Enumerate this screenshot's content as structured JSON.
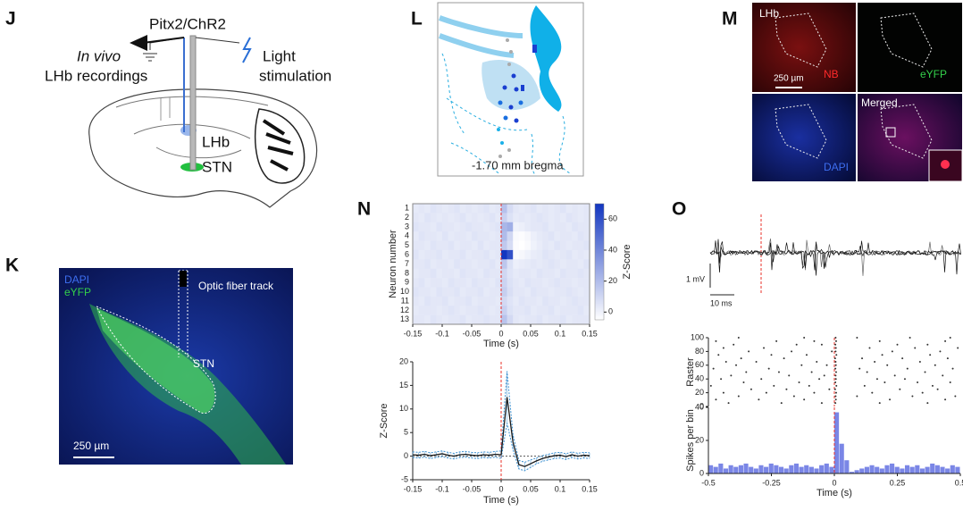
{
  "panel_labels": [
    "J",
    "K",
    "L",
    "M",
    "N",
    "O"
  ],
  "J": {
    "construct": "Pitx2/ChR2",
    "recording": [
      "In vivo",
      "LHb recordings"
    ],
    "light": [
      "Light",
      "stimulation"
    ],
    "lhb": "LHb",
    "stn": "STN"
  },
  "K": {
    "dapi": "DAPI",
    "eyfp": "eYFP",
    "fiber": "Optic fiber track",
    "stn": "STN",
    "scale": "250 µm"
  },
  "L": {
    "bregma": "-1.70 mm bregma"
  },
  "M": {
    "lhb": "LHb",
    "nb": "NB",
    "eyfp": "eYFP",
    "scale": "250 µm",
    "dapi": "DAPI",
    "merged": "Merged"
  },
  "O": {
    "scale_v": "1 mV",
    "scale_t": "10 ms"
  },
  "chart_data": [
    {
      "type": "heatmap",
      "ylabel": "Neuron number",
      "xlabel": "Time (s)",
      "colorbar_label": "Z-Score",
      "bins": [
        -0.15,
        -0.14,
        -0.13,
        -0.12,
        -0.11,
        -0.1,
        -0.09,
        -0.08,
        -0.07,
        -0.06,
        -0.05,
        -0.04,
        -0.03,
        -0.02,
        -0.01,
        0,
        0.01,
        0.02,
        0.03,
        0.04,
        0.05,
        0.06,
        0.07,
        0.08,
        0.09,
        0.1,
        0.11,
        0.12,
        0.13,
        0.14,
        0.15
      ],
      "rows": [
        1,
        2,
        3,
        4,
        5,
        6,
        7,
        8,
        9,
        10,
        11,
        12,
        13
      ],
      "values": [
        [
          3,
          4,
          3,
          5,
          4,
          3,
          4,
          5,
          3,
          4,
          3,
          4,
          5,
          3,
          4,
          18,
          8,
          4,
          3,
          4,
          5,
          3,
          4,
          3,
          4,
          5,
          3,
          4,
          3,
          4
        ],
        [
          4,
          3,
          5,
          4,
          3,
          4,
          3,
          4,
          5,
          3,
          4,
          3,
          4,
          5,
          3,
          12,
          6,
          3,
          4,
          3,
          4,
          5,
          4,
          3,
          4,
          3,
          5,
          4,
          3,
          4
        ],
        [
          5,
          4,
          4,
          3,
          5,
          4,
          4,
          3,
          4,
          5,
          4,
          4,
          3,
          4,
          5,
          22,
          25,
          0,
          1,
          3,
          4,
          4,
          5,
          3,
          4,
          4,
          3,
          5,
          4,
          4
        ],
        [
          3,
          5,
          4,
          4,
          3,
          5,
          3,
          4,
          4,
          3,
          5,
          4,
          4,
          3,
          4,
          20,
          10,
          -3,
          -4,
          -2,
          1,
          3,
          4,
          5,
          3,
          4,
          4,
          3,
          5,
          4
        ],
        [
          4,
          4,
          3,
          5,
          4,
          4,
          5,
          3,
          4,
          4,
          3,
          5,
          3,
          4,
          4,
          15,
          8,
          -4,
          -5,
          -3,
          0,
          2,
          4,
          3,
          5,
          4,
          3,
          4,
          4,
          5
        ],
        [
          5,
          3,
          4,
          4,
          5,
          3,
          4,
          4,
          5,
          3,
          4,
          4,
          5,
          3,
          4,
          70,
          60,
          -3,
          -2,
          0,
          2,
          3,
          5,
          4,
          3,
          4,
          5,
          3,
          4,
          3
        ],
        [
          4,
          4,
          5,
          3,
          4,
          4,
          3,
          5,
          4,
          4,
          3,
          4,
          4,
          5,
          3,
          16,
          6,
          1,
          2,
          3,
          4,
          3,
          4,
          5,
          4,
          3,
          4,
          4,
          3,
          5
        ],
        [
          3,
          4,
          4,
          5,
          3,
          4,
          4,
          3,
          5,
          4,
          4,
          3,
          5,
          4,
          4,
          10,
          5,
          3,
          4,
          4,
          3,
          5,
          4,
          4,
          3,
          5,
          4,
          4,
          5,
          4
        ],
        [
          4,
          5,
          3,
          4,
          4,
          3,
          5,
          4,
          4,
          3,
          5,
          4,
          4,
          3,
          5,
          11,
          6,
          4,
          3,
          5,
          4,
          4,
          3,
          4,
          5,
          4,
          4,
          3,
          4,
          4
        ],
        [
          5,
          4,
          4,
          3,
          5,
          4,
          4,
          5,
          3,
          4,
          4,
          5,
          3,
          4,
          4,
          13,
          7,
          4,
          4,
          3,
          5,
          4,
          4,
          3,
          4,
          4,
          5,
          4,
          3,
          4
        ],
        [
          4,
          3,
          5,
          4,
          4,
          5,
          3,
          4,
          4,
          5,
          3,
          4,
          4,
          4,
          3,
          9,
          5,
          3,
          5,
          4,
          4,
          3,
          5,
          4,
          4,
          3,
          4,
          5,
          4,
          4
        ],
        [
          3,
          4,
          4,
          4,
          3,
          4,
          5,
          4,
          3,
          4,
          4,
          5,
          4,
          3,
          4,
          12,
          6,
          4,
          4,
          5,
          3,
          4,
          4,
          5,
          3,
          4,
          4,
          4,
          5,
          3
        ],
        [
          4,
          4,
          3,
          5,
          4,
          3,
          4,
          4,
          5,
          3,
          4,
          4,
          5,
          4,
          4,
          17,
          9,
          4,
          3,
          4,
          4,
          5,
          3,
          4,
          4,
          5,
          3,
          4,
          4,
          4
        ]
      ],
      "xlim": [
        -0.15,
        0.15
      ],
      "xticks": [
        -0.15,
        -0.1,
        -0.05,
        0,
        0.05,
        0.1,
        0.15
      ],
      "zlim": [
        -5,
        70
      ],
      "zticks": [
        0,
        20,
        40,
        60
      ],
      "colors": [
        "#ffffff",
        "#1236c0"
      ],
      "stim_line": {
        "x": 0,
        "color": "#e8302a"
      }
    },
    {
      "type": "line",
      "ylabel": "Z-Score",
      "xlabel": "Time (s)",
      "x": [
        -0.15,
        -0.14,
        -0.13,
        -0.12,
        -0.11,
        -0.1,
        -0.09,
        -0.08,
        -0.07,
        -0.06,
        -0.05,
        -0.04,
        -0.03,
        -0.02,
        -0.01,
        0,
        0.01,
        0.02,
        0.03,
        0.04,
        0.05,
        0.06,
        0.07,
        0.08,
        0.09,
        0.1,
        0.11,
        0.12,
        0.13,
        0.14,
        0.15
      ],
      "values": [
        0.3,
        0.2,
        0.4,
        0.1,
        0.3,
        0.5,
        0.2,
        0,
        0.3,
        0.4,
        0.2,
        0.1,
        0.3,
        0.2,
        0.4,
        0.3,
        12.5,
        3,
        -1.8,
        -2.2,
        -1.6,
        -1,
        -0.5,
        -0.2,
        0.1,
        0.2,
        -0.1,
        0.3,
        0,
        0.2,
        0.1
      ],
      "error": [
        0.6,
        0.6,
        0.6,
        0.6,
        0.6,
        0.6,
        0.6,
        0.6,
        0.6,
        0.6,
        0.6,
        0.6,
        0.6,
        0.6,
        0.6,
        0.8,
        5.5,
        1.6,
        0.9,
        0.9,
        0.8,
        0.6,
        0.6,
        0.6,
        0.6,
        0.6,
        0.6,
        0.6,
        0.6,
        0.6,
        0.6
      ],
      "color": "#1a1a1a",
      "error_color": "#3a8fd0",
      "xlim": [
        -0.15,
        0.15
      ],
      "xticks": [
        -0.15,
        -0.1,
        -0.05,
        0,
        0.05,
        0.1,
        0.15
      ],
      "ylim": [
        -5,
        20
      ],
      "yticks": [
        -5,
        0,
        5,
        10,
        15,
        20
      ],
      "baseline": {
        "y": 0
      },
      "stim_line": {
        "x": 0,
        "color": "#e8302a"
      }
    },
    {
      "type": "raster",
      "ylabel": "Raster",
      "trials": [
        {
          "trial": 5,
          "spikes": [
            -0.42,
            -0.21,
            -0.05,
            0.004,
            0.18,
            0.37
          ]
        },
        {
          "trial": 10,
          "spikes": [
            -0.47,
            -0.3,
            -0.12,
            0.006,
            0.22,
            0.44
          ]
        },
        {
          "trial": 15,
          "spikes": [
            -0.38,
            -0.16,
            0.005,
            0.09,
            0.31,
            0.48
          ]
        },
        {
          "trial": 20,
          "spikes": [
            -0.44,
            -0.27,
            -0.08,
            0.007,
            0.15,
            0.35
          ]
        },
        {
          "trial": 25,
          "spikes": [
            -0.33,
            -0.19,
            -0.02,
            0.003,
            0.26,
            0.41
          ]
        },
        {
          "trial": 30,
          "spikes": [
            -0.49,
            -0.24,
            -0.1,
            0.008,
            0.12,
            0.39
          ]
        },
        {
          "trial": 35,
          "spikes": [
            -0.36,
            -0.14,
            0.004,
            0.2,
            0.33,
            0.46
          ]
        },
        {
          "trial": 40,
          "spikes": [
            -0.45,
            -0.29,
            -0.06,
            0.006,
            0.17,
            0.28
          ]
        },
        {
          "trial": 45,
          "spikes": [
            -0.41,
            -0.18,
            -0.04,
            0.005,
            0.24,
            0.43
          ]
        },
        {
          "trial": 50,
          "spikes": [
            -0.35,
            -0.22,
            -0.09,
            0.007,
            0.13,
            0.36
          ]
        },
        {
          "trial": 55,
          "spikes": [
            -0.48,
            -0.26,
            0.004,
            0.1,
            0.29,
            0.47
          ]
        },
        {
          "trial": 60,
          "spikes": [
            -0.39,
            -0.13,
            -0.03,
            0.006,
            0.21,
            0.4
          ]
        },
        {
          "trial": 65,
          "spikes": [
            -0.43,
            -0.31,
            -0.07,
            0.005,
            0.16,
            0.34
          ]
        },
        {
          "trial": 70,
          "spikes": [
            -0.37,
            -0.2,
            0.003,
            0.11,
            0.27,
            0.45
          ]
        },
        {
          "trial": 75,
          "spikes": [
            -0.46,
            -0.25,
            -0.11,
            0.008,
            0.19,
            0.38
          ]
        },
        {
          "trial": 80,
          "spikes": [
            -0.34,
            -0.17,
            -0.01,
            0.005,
            0.23,
            0.42
          ]
        },
        {
          "trial": 85,
          "spikes": [
            -0.44,
            -0.28,
            0.006,
            0.14,
            0.32,
            0.49
          ]
        },
        {
          "trial": 90,
          "spikes": [
            -0.4,
            -0.15,
            -0.05,
            0.004,
            0.25,
            0.37
          ]
        },
        {
          "trial": 95,
          "spikes": [
            -0.47,
            -0.23,
            -0.08,
            0.007,
            0.18,
            0.44
          ]
        },
        {
          "trial": 100,
          "spikes": [
            -0.38,
            -0.12,
            0.005,
            0.09,
            0.3,
            0.46
          ]
        }
      ],
      "color": "#333333",
      "xlim": [
        -0.5,
        0.5
      ],
      "ylim": [
        0,
        100
      ],
      "yticks": [
        0,
        20,
        40,
        60,
        80,
        100
      ],
      "stim_line": {
        "x": 0,
        "color": "#e8302a"
      }
    },
    {
      "type": "histogram",
      "ylabel": "Spikes per bin",
      "xlabel": "Time (s)",
      "bins": [
        -0.5,
        -0.48,
        -0.46,
        -0.44,
        -0.42,
        -0.4,
        -0.38,
        -0.36,
        -0.34,
        -0.32,
        -0.3,
        -0.28,
        -0.26,
        -0.24,
        -0.22,
        -0.2,
        -0.18,
        -0.16,
        -0.14,
        -0.12,
        -0.1,
        -0.08,
        -0.06,
        -0.04,
        -0.02,
        0,
        0.02,
        0.04,
        0.06,
        0.08,
        0.1,
        0.12,
        0.14,
        0.16,
        0.18,
        0.2,
        0.22,
        0.24,
        0.26,
        0.28,
        0.3,
        0.32,
        0.34,
        0.36,
        0.38,
        0.4,
        0.42,
        0.44,
        0.46,
        0.48,
        0.5
      ],
      "values": [
        5,
        4,
        6,
        3,
        5,
        4,
        5,
        6,
        4,
        3,
        5,
        4,
        6,
        5,
        4,
        3,
        5,
        6,
        4,
        5,
        4,
        3,
        5,
        6,
        4,
        37,
        18,
        8,
        1,
        2,
        3,
        4,
        5,
        4,
        3,
        5,
        6,
        4,
        3,
        5,
        4,
        5,
        3,
        4,
        6,
        5,
        4,
        3,
        5,
        4
      ],
      "color": "#7a86e6",
      "xlim": [
        -0.5,
        0.5
      ],
      "xticks": [
        -0.5,
        -0.25,
        0,
        0.25,
        0.5
      ],
      "ylim": [
        0,
        40
      ],
      "yticks": [
        0,
        20,
        40
      ],
      "stim_line": {
        "x": 0,
        "color": "#e8302a"
      }
    }
  ]
}
